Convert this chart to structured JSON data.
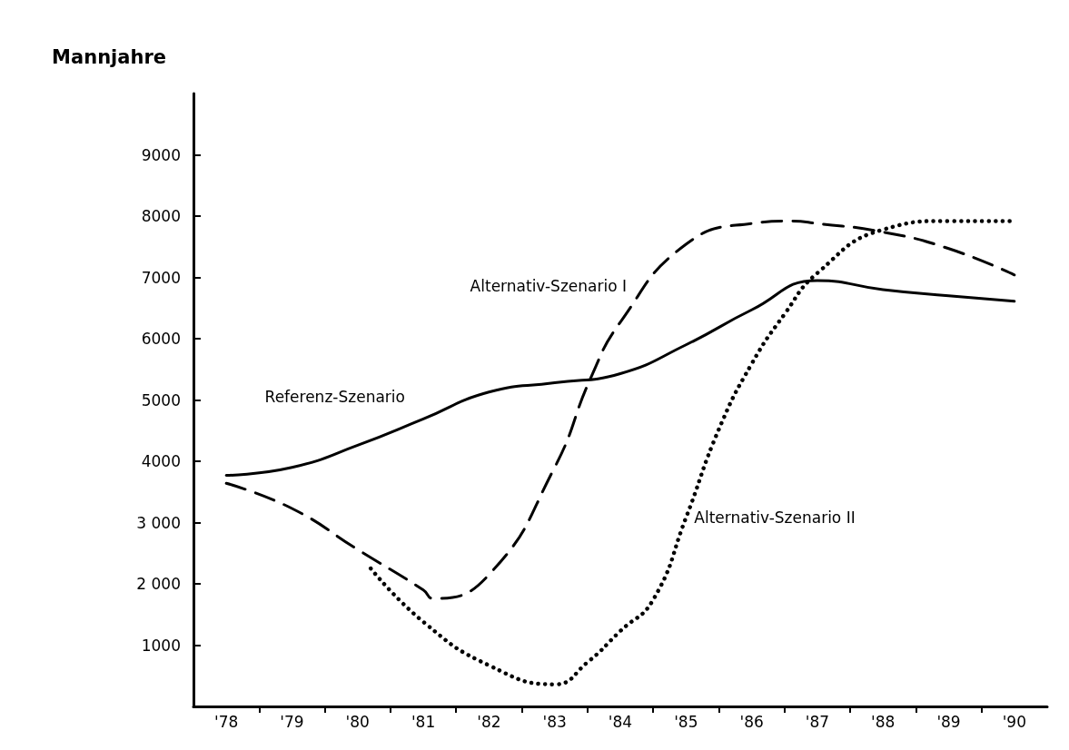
{
  "chart_data": {
    "type": "line",
    "ylabel": "Mannjahre",
    "xlim": [
      1977.5,
      1990.5
    ],
    "xticks": [
      {
        "value": 1978,
        "label": "'78"
      },
      {
        "value": 1978.5,
        "label": null
      },
      {
        "value": 1979,
        "label": "'79"
      },
      {
        "value": 1979.5,
        "label": null
      },
      {
        "value": 1980,
        "label": "'80"
      },
      {
        "value": 1980.5,
        "label": null
      },
      {
        "value": 1981,
        "label": "'81"
      },
      {
        "value": 1981.5,
        "label": null
      },
      {
        "value": 1982,
        "label": "'82"
      },
      {
        "value": 1982.5,
        "label": null
      },
      {
        "value": 1983,
        "label": "'83"
      },
      {
        "value": 1983.5,
        "label": null
      },
      {
        "value": 1984,
        "label": "'84"
      },
      {
        "value": 1984.5,
        "label": null
      },
      {
        "value": 1985,
        "label": "'85"
      },
      {
        "value": 1985.5,
        "label": null
      },
      {
        "value": 1986,
        "label": "'86"
      },
      {
        "value": 1986.5,
        "label": null
      },
      {
        "value": 1987,
        "label": "'87"
      },
      {
        "value": 1987.5,
        "label": null
      },
      {
        "value": 1988,
        "label": "'88"
      },
      {
        "value": 1988.5,
        "label": null
      },
      {
        "value": 1989,
        "label": "'89"
      },
      {
        "value": 1989.5,
        "label": null
      },
      {
        "value": 1990,
        "label": "'90"
      }
    ],
    "ylim": [
      0,
      10000
    ],
    "yticks": [
      1000,
      {
        "value": 2000,
        "label": "2 000"
      },
      {
        "value": 3000,
        "label": "3 000"
      },
      4000,
      5000,
      6000,
      7000,
      8000,
      9000
    ],
    "grid": false,
    "legend": false,
    "marker": "none",
    "series": [
      {
        "name": "Referenz-Szenario",
        "color": "#000000",
        "line_style": "solid",
        "x": [
          1978,
          1979,
          1980,
          1981,
          1982,
          1983,
          1984,
          1985,
          1986,
          1987,
          1988,
          1989,
          1990
        ],
        "values": [
          3770,
          3900,
          4260,
          4690,
          5130,
          5280,
          5430,
          5900,
          6470,
          6950,
          6800,
          6700,
          6610
        ]
      },
      {
        "name": "Alternativ-Szenario I",
        "color": "#000000",
        "line_style": "dashed",
        "x": [
          1978,
          1979,
          1980,
          1981,
          1981.15,
          1982,
          1983,
          1983.55,
          1984,
          1985,
          1986,
          1986.6,
          1987,
          1988,
          1989,
          1990
        ],
        "values": [
          3640,
          3230,
          2560,
          1900,
          1760,
          2150,
          3900,
          5360,
          6270,
          7540,
          7880,
          7920,
          7880,
          7740,
          7470,
          7040
        ]
      },
      {
        "name": "Alternativ-Szenario II",
        "color": "#000000",
        "line_style": "dotted",
        "x": [
          1980.2,
          1981,
          1982,
          1983,
          1983.5,
          1984,
          1984.5,
          1985,
          1985.5,
          1986,
          1986.5,
          1987,
          1988,
          1989,
          1990
        ],
        "values": [
          2250,
          1380,
          670,
          360,
          720,
          1230,
          1740,
          3080,
          4520,
          5590,
          6400,
          7070,
          7780,
          7920,
          7920
        ]
      }
    ]
  }
}
